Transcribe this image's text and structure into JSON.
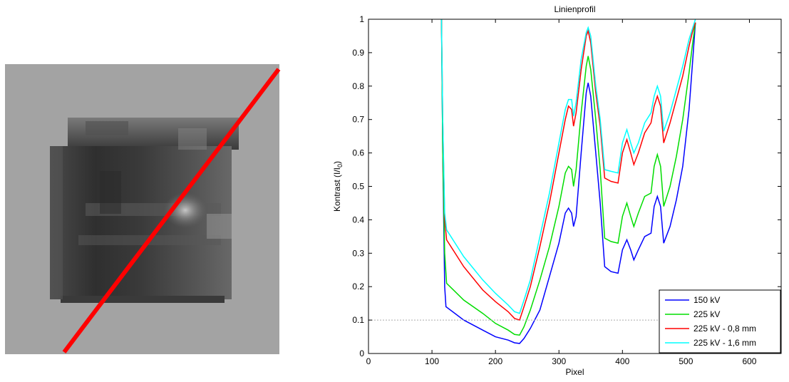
{
  "colors": {
    "red_line": "#ff0000",
    "s150": "#0000ff",
    "s225": "#00dd00",
    "s225_08": "#ff0000",
    "s225_16": "#00ffff"
  },
  "chart_data": {
    "type": "line",
    "title": "Linienprofil",
    "xlabel": "Pixel",
    "ylabel_main": "Kontrast (I/I",
    "ylabel_sub": "0",
    "ylabel_end": ")",
    "xlim": [
      0,
      650
    ],
    "ylim": [
      0,
      1
    ],
    "xticks": [
      0,
      100,
      200,
      300,
      400,
      500,
      600
    ],
    "yticks": [
      0,
      0.1,
      0.2,
      0.3,
      0.4,
      0.5,
      0.6,
      0.7,
      0.8,
      0.9,
      1
    ],
    "xtick_labels": [
      "0",
      "100",
      "200",
      "300",
      "400",
      "500",
      "600"
    ],
    "ytick_labels": [
      "0",
      "0.1",
      "0.2",
      "0.3",
      "0.4",
      "0.5",
      "0.6",
      "0.7",
      "0.8",
      "0.9",
      "1"
    ],
    "reference_line_y": 0.1,
    "legend_position": "bottom-right",
    "series": [
      {
        "name": "150 kV",
        "color": "#0000ff",
        "points": [
          [
            115,
            1.0
          ],
          [
            117,
            0.6
          ],
          [
            120,
            0.2
          ],
          [
            122,
            0.14
          ],
          [
            150,
            0.1
          ],
          [
            180,
            0.07
          ],
          [
            200,
            0.05
          ],
          [
            220,
            0.04
          ],
          [
            230,
            0.032
          ],
          [
            238,
            0.03
          ],
          [
            245,
            0.045
          ],
          [
            255,
            0.075
          ],
          [
            270,
            0.13
          ],
          [
            285,
            0.23
          ],
          [
            300,
            0.33
          ],
          [
            310,
            0.42
          ],
          [
            315,
            0.435
          ],
          [
            320,
            0.42
          ],
          [
            323,
            0.38
          ],
          [
            327,
            0.41
          ],
          [
            335,
            0.6
          ],
          [
            343,
            0.78
          ],
          [
            346,
            0.81
          ],
          [
            350,
            0.77
          ],
          [
            358,
            0.6
          ],
          [
            365,
            0.45
          ],
          [
            372,
            0.26
          ],
          [
            382,
            0.245
          ],
          [
            393,
            0.24
          ],
          [
            400,
            0.31
          ],
          [
            407,
            0.34
          ],
          [
            413,
            0.31
          ],
          [
            418,
            0.28
          ],
          [
            425,
            0.31
          ],
          [
            435,
            0.35
          ],
          [
            445,
            0.36
          ],
          [
            450,
            0.44
          ],
          [
            455,
            0.47
          ],
          [
            460,
            0.44
          ],
          [
            465,
            0.33
          ],
          [
            475,
            0.38
          ],
          [
            485,
            0.46
          ],
          [
            495,
            0.56
          ],
          [
            505,
            0.73
          ],
          [
            510,
            0.86
          ],
          [
            515,
            0.99
          ]
        ]
      },
      {
        "name": "225 kV",
        "color": "#00dd00",
        "points": [
          [
            115,
            1.0
          ],
          [
            117,
            0.6
          ],
          [
            120,
            0.3
          ],
          [
            123,
            0.21
          ],
          [
            150,
            0.16
          ],
          [
            180,
            0.12
          ],
          [
            200,
            0.09
          ],
          [
            220,
            0.07
          ],
          [
            230,
            0.057
          ],
          [
            238,
            0.055
          ],
          [
            245,
            0.08
          ],
          [
            255,
            0.13
          ],
          [
            270,
            0.22
          ],
          [
            285,
            0.32
          ],
          [
            300,
            0.44
          ],
          [
            310,
            0.54
          ],
          [
            315,
            0.56
          ],
          [
            320,
            0.55
          ],
          [
            323,
            0.5
          ],
          [
            327,
            0.55
          ],
          [
            335,
            0.72
          ],
          [
            343,
            0.86
          ],
          [
            346,
            0.89
          ],
          [
            350,
            0.85
          ],
          [
            358,
            0.7
          ],
          [
            365,
            0.55
          ],
          [
            372,
            0.345
          ],
          [
            382,
            0.335
          ],
          [
            393,
            0.33
          ],
          [
            400,
            0.41
          ],
          [
            407,
            0.45
          ],
          [
            413,
            0.41
          ],
          [
            418,
            0.38
          ],
          [
            425,
            0.42
          ],
          [
            435,
            0.47
          ],
          [
            445,
            0.48
          ],
          [
            450,
            0.56
          ],
          [
            455,
            0.595
          ],
          [
            460,
            0.56
          ],
          [
            465,
            0.44
          ],
          [
            475,
            0.5
          ],
          [
            485,
            0.59
          ],
          [
            495,
            0.7
          ],
          [
            505,
            0.84
          ],
          [
            510,
            0.92
          ],
          [
            515,
            0.99
          ]
        ]
      },
      {
        "name": "225 kV - 0,8 mm",
        "color": "#ff0000",
        "points": [
          [
            115,
            1.0
          ],
          [
            117,
            0.7
          ],
          [
            120,
            0.4
          ],
          [
            123,
            0.34
          ],
          [
            150,
            0.26
          ],
          [
            180,
            0.19
          ],
          [
            200,
            0.155
          ],
          [
            220,
            0.125
          ],
          [
            230,
            0.105
          ],
          [
            238,
            0.1
          ],
          [
            245,
            0.14
          ],
          [
            255,
            0.2
          ],
          [
            270,
            0.32
          ],
          [
            285,
            0.45
          ],
          [
            300,
            0.6
          ],
          [
            310,
            0.7
          ],
          [
            315,
            0.74
          ],
          [
            320,
            0.73
          ],
          [
            323,
            0.68
          ],
          [
            327,
            0.72
          ],
          [
            335,
            0.85
          ],
          [
            343,
            0.95
          ],
          [
            346,
            0.965
          ],
          [
            350,
            0.93
          ],
          [
            358,
            0.78
          ],
          [
            365,
            0.68
          ],
          [
            372,
            0.525
          ],
          [
            382,
            0.515
          ],
          [
            393,
            0.51
          ],
          [
            400,
            0.6
          ],
          [
            407,
            0.64
          ],
          [
            413,
            0.6
          ],
          [
            418,
            0.565
          ],
          [
            425,
            0.6
          ],
          [
            435,
            0.66
          ],
          [
            445,
            0.69
          ],
          [
            450,
            0.74
          ],
          [
            455,
            0.77
          ],
          [
            460,
            0.74
          ],
          [
            465,
            0.63
          ],
          [
            475,
            0.69
          ],
          [
            485,
            0.76
          ],
          [
            495,
            0.83
          ],
          [
            505,
            0.92
          ],
          [
            510,
            0.96
          ],
          [
            515,
            0.99
          ]
        ]
      },
      {
        "name": "225 kV - 1,6 mm",
        "color": "#00ffff",
        "points": [
          [
            115,
            1.0
          ],
          [
            117,
            0.7
          ],
          [
            120,
            0.42
          ],
          [
            123,
            0.37
          ],
          [
            150,
            0.29
          ],
          [
            180,
            0.22
          ],
          [
            200,
            0.18
          ],
          [
            220,
            0.145
          ],
          [
            230,
            0.125
          ],
          [
            238,
            0.12
          ],
          [
            245,
            0.16
          ],
          [
            255,
            0.22
          ],
          [
            270,
            0.35
          ],
          [
            285,
            0.48
          ],
          [
            300,
            0.63
          ],
          [
            310,
            0.73
          ],
          [
            315,
            0.76
          ],
          [
            320,
            0.76
          ],
          [
            323,
            0.71
          ],
          [
            327,
            0.75
          ],
          [
            335,
            0.88
          ],
          [
            343,
            0.96
          ],
          [
            346,
            0.975
          ],
          [
            350,
            0.95
          ],
          [
            358,
            0.8
          ],
          [
            365,
            0.7
          ],
          [
            372,
            0.55
          ],
          [
            382,
            0.545
          ],
          [
            393,
            0.54
          ],
          [
            400,
            0.63
          ],
          [
            407,
            0.67
          ],
          [
            413,
            0.63
          ],
          [
            418,
            0.6
          ],
          [
            425,
            0.63
          ],
          [
            435,
            0.69
          ],
          [
            445,
            0.72
          ],
          [
            450,
            0.77
          ],
          [
            455,
            0.8
          ],
          [
            460,
            0.77
          ],
          [
            465,
            0.665
          ],
          [
            475,
            0.72
          ],
          [
            485,
            0.79
          ],
          [
            495,
            0.86
          ],
          [
            505,
            0.94
          ],
          [
            510,
            0.97
          ],
          [
            515,
            1.0
          ]
        ]
      }
    ]
  }
}
